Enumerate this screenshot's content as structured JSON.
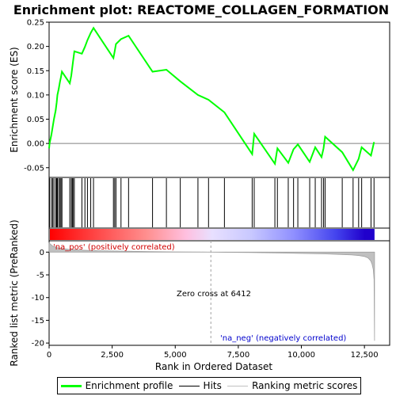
{
  "chart_data": {
    "type": "line",
    "title": "Enrichment plot: REACTOME_COLLAGEN_FORMATION",
    "ylabel_top": "Enrichment score (ES)",
    "ylabel_bottom": "Ranked list metric (PreRanked)",
    "xlabel": "Rank in Ordered Dataset",
    "x_range": [
      0,
      13500
    ],
    "es_ylim": [
      -0.07,
      0.25
    ],
    "es_yticks": [
      -0.05,
      0.0,
      0.05,
      0.1,
      0.15,
      0.2,
      0.25
    ],
    "es_ytick_labels": [
      "-0.05",
      "0.00",
      "0.05",
      "0.10",
      "0.15",
      "0.20",
      "0.25"
    ],
    "metric_ylim": [
      -20.5,
      2.5
    ],
    "metric_yticks": [
      0,
      -5,
      -10,
      -15,
      -20
    ],
    "metric_ytick_labels": [
      "0",
      "-5",
      "-10",
      "-15",
      "-20"
    ],
    "xticks": [
      0,
      2500,
      5000,
      7500,
      10000,
      12500
    ],
    "xtick_labels": [
      "0",
      "2,500",
      "5,000",
      "7,500",
      "10,000",
      "12,500"
    ],
    "zero_cross_rank": 6412,
    "zero_cross_label": "Zero cross at 6412",
    "pos_label": "'na_pos' (positively correlated)",
    "neg_label": "'na_neg' (negatively correlated)",
    "hits": [
      20,
      90,
      140,
      190,
      260,
      300,
      330,
      380,
      430,
      470,
      510,
      820,
      880,
      920,
      950,
      1000,
      1300,
      1420,
      1520,
      1650,
      1760,
      2550,
      2600,
      2650,
      2850,
      3150,
      4100,
      4650,
      5200,
      5900,
      6320,
      6950,
      8050,
      8130,
      8950,
      9050,
      9480,
      9690,
      9860,
      10330,
      10550,
      10800,
      10880,
      10940,
      11620,
      12050,
      12270,
      12390,
      12760,
      12880
    ],
    "es_series": {
      "name": "Enrichment profile",
      "x": [
        0,
        20,
        90,
        140,
        190,
        260,
        300,
        330,
        380,
        430,
        470,
        510,
        820,
        880,
        920,
        950,
        1000,
        1300,
        1420,
        1520,
        1650,
        1760,
        2550,
        2600,
        2650,
        2850,
        3150,
        4100,
        4650,
        5200,
        5900,
        6320,
        6950,
        8050,
        8130,
        8950,
        9050,
        9480,
        9690,
        9860,
        10330,
        10550,
        10800,
        10880,
        10940,
        11620,
        12050,
        12270,
        12390,
        12760,
        12880
      ],
      "y": [
        -0.01,
        0.0,
        0.018,
        0.034,
        0.05,
        0.068,
        0.085,
        0.1,
        0.112,
        0.127,
        0.137,
        0.148,
        0.124,
        0.14,
        0.157,
        0.17,
        0.19,
        0.185,
        0.199,
        0.213,
        0.228,
        0.238,
        0.176,
        0.19,
        0.205,
        0.215,
        0.222,
        0.148,
        0.152,
        0.128,
        0.1,
        0.09,
        0.064,
        -0.022,
        0.02,
        -0.042,
        -0.01,
        -0.04,
        -0.012,
        -0.002,
        -0.038,
        -0.008,
        -0.028,
        -0.01,
        0.014,
        -0.018,
        -0.055,
        -0.032,
        -0.008,
        -0.025,
        0.003
      ]
    },
    "metric_series": {
      "name": "Ranking metric scores",
      "x": [
        0,
        150,
        300,
        500,
        800,
        1200,
        2000,
        3000,
        4000,
        5000,
        6000,
        6412,
        7000,
        8000,
        9000,
        10000,
        11000,
        11500,
        12000,
        12300,
        12500,
        12650,
        12750,
        12800,
        12850,
        12880,
        12900
      ],
      "y": [
        2.0,
        1.3,
        1.0,
        0.8,
        0.6,
        0.45,
        0.3,
        0.2,
        0.12,
        0.06,
        0.02,
        0.0,
        -0.04,
        -0.1,
        -0.18,
        -0.28,
        -0.4,
        -0.5,
        -0.62,
        -0.75,
        -0.95,
        -1.3,
        -1.9,
        -2.6,
        -3.8,
        -6.0,
        -19.5
      ]
    },
    "legend": [
      {
        "label": "Enrichment profile",
        "color": "#00ff00"
      },
      {
        "label": "Hits",
        "color": "#000000"
      },
      {
        "label": "Ranking metric scores",
        "color": "#c0c0c0"
      }
    ],
    "colors": {
      "es_line": "#00ff00",
      "zero_line": "#808080",
      "pos_text": "#d00000",
      "neg_text": "#0000cc",
      "metric_fill": "#c0c0c0"
    }
  }
}
